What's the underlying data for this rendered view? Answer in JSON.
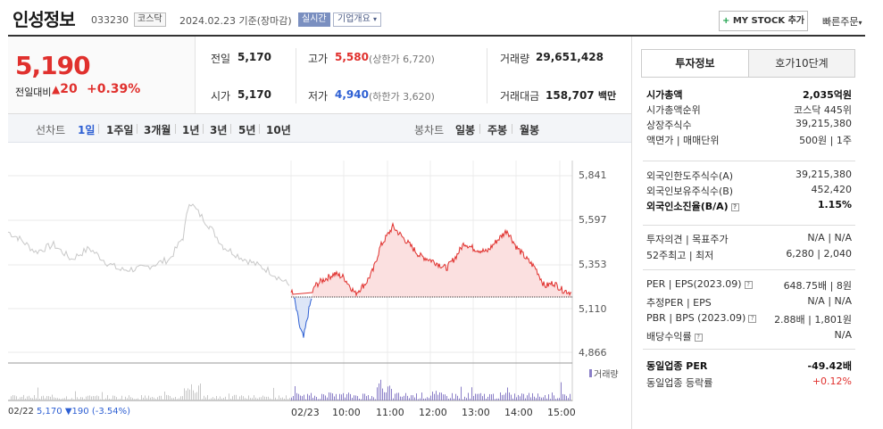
{
  "header": {
    "name": "인성정보",
    "code": "033230",
    "market": "코스닥",
    "date": "2024.02.23",
    "basis": "기준(장마감)",
    "realtime": "실시간",
    "company_info": "기업개요",
    "my_stock": "MY STOCK 추가",
    "quick_order": "빠른주문"
  },
  "price": {
    "current": "5,190",
    "change_label": "전일대비",
    "change": "20",
    "change_pct": "+0.39%"
  },
  "stats": {
    "prev_label": "전일",
    "prev": "5,170",
    "open_label": "시가",
    "open": "5,170",
    "high_label": "고가",
    "high": "5,580",
    "upper_limit": "(상한가 6,720)",
    "low_label": "저가",
    "low": "4,940",
    "lower_limit": "(하한가 3,620)",
    "volume_label": "거래량",
    "volume": "29,651,428",
    "amount_label": "거래대금",
    "amount": "158,707",
    "amount_unit": "백만"
  },
  "periods": {
    "line_label": "선차트",
    "line_items": [
      "1일",
      "1주일",
      "3개월",
      "1년",
      "3년",
      "5년",
      "10년"
    ],
    "active": "1일",
    "candle_label": "봉차트",
    "candle_items": [
      "일봉",
      "주봉",
      "월봉"
    ]
  },
  "chart": {
    "y_ticks": [
      "5,841",
      "5,597",
      "5,353",
      "5,110",
      "4,866"
    ],
    "x_ticks": [
      "02/23",
      "10:00",
      "11:00",
      "12:00",
      "13:00",
      "14:00",
      "15:00"
    ],
    "volume_legend": "거래량",
    "prev_info_date": "02/22",
    "prev_info_price": "5,170",
    "prev_info_change": "▼190",
    "prev_info_pct": "(-3.54%)",
    "up_color": "#e0302d",
    "down_color": "#2d5fd3"
  },
  "chart_data": {
    "type": "line",
    "base_price": 5170,
    "ylim": [
      4866,
      5841
    ],
    "intraday_x": [
      "02/23",
      "10:00",
      "11:00",
      "12:00",
      "13:00",
      "14:00",
      "15:00"
    ],
    "intraday_price": [
      5170,
      5190,
      5520,
      5420,
      5430,
      5500,
      5190
    ],
    "intraday_low": 4940,
    "intraday_high": 5580
  },
  "right_panel": {
    "tab_invest": "투자정보",
    "tab_orderbook": "호가10단계",
    "rows1": [
      {
        "l": "시가총액",
        "r": "2,035억원",
        "bold": true
      },
      {
        "l": "시가총액순위",
        "r": "코스닥 445위"
      },
      {
        "l": "상장주식수",
        "r": "39,215,380"
      },
      {
        "l": "액면가 | 매매단위",
        "r": "500원 | 1주"
      }
    ],
    "rows2": [
      {
        "l": "외국인한도주식수(A)",
        "r": "39,215,380"
      },
      {
        "l": "외국인보유주식수(B)",
        "r": "452,420"
      },
      {
        "l": "외국인소진율(B/A)",
        "r": "1.15%",
        "bold": true
      }
    ],
    "rows3": [
      {
        "l": "투자의견 | 목표주가",
        "r": "N/A | N/A"
      },
      {
        "l": "52주최고 | 최저",
        "r": "6,280 | 2,040"
      }
    ],
    "rows4": [
      {
        "l": "PER | EPS(2023.09)",
        "r": "648.75배 | 8원"
      },
      {
        "l": "추정PER | EPS",
        "r": "N/A | N/A"
      },
      {
        "l": "PBR | BPS (2023.09)",
        "r": "2.88배 | 1,801원"
      },
      {
        "l": "배당수익률",
        "r": "N/A"
      }
    ],
    "rows5": [
      {
        "l": "동일업종 PER",
        "r": "-49.42배",
        "bold": true
      },
      {
        "l": "동일업종 등락률",
        "r": "+0.12%"
      }
    ]
  }
}
